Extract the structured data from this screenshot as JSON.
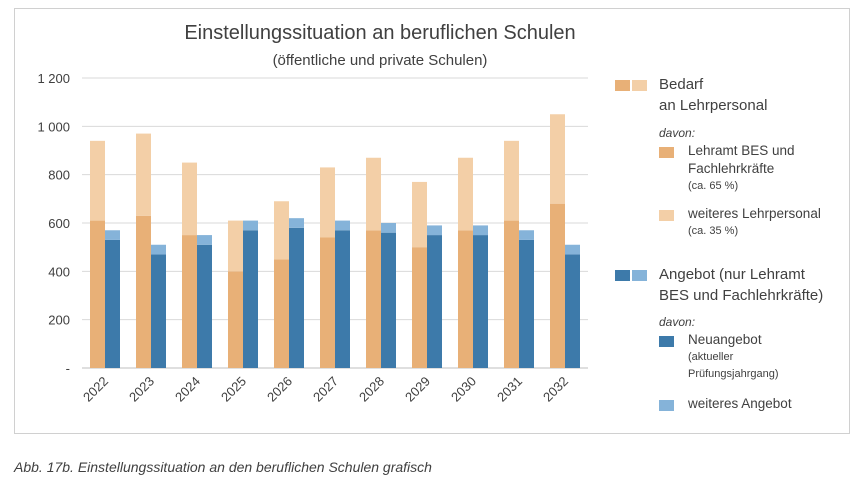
{
  "chart_data": {
    "type": "bar",
    "title": "Einstellungssituation an beruflichen Schulen",
    "subtitle": "(öffentliche und private Schulen)",
    "categories": [
      "2022",
      "2023",
      "2024",
      "2025",
      "2026",
      "2027",
      "2028",
      "2029",
      "2030",
      "2031",
      "2032"
    ],
    "y_ticks": [
      "-",
      "200",
      "400",
      "600",
      "800",
      "1 000",
      "1 200"
    ],
    "ylim": [
      0,
      1200
    ],
    "grid": true,
    "legend_position": "right",
    "series": [
      {
        "name": "Lehramt BES und Fachlehrkräfte (ca. 65 %)",
        "group": "Bedarf",
        "stack_order": 1,
        "color": "#e8b077",
        "values": [
          610,
          630,
          550,
          400,
          450,
          540,
          570,
          500,
          570,
          610,
          680
        ]
      },
      {
        "name": "weiteres Lehrpersonal (ca. 35 %)",
        "group": "Bedarf",
        "stack_order": 2,
        "color": "#f3cfa7",
        "values": [
          330,
          340,
          300,
          210,
          240,
          290,
          300,
          270,
          300,
          330,
          370
        ]
      },
      {
        "name": "Neuangebot (aktueller Prüfungsjahrgang)",
        "group": "Angebot",
        "stack_order": 1,
        "color": "#3d7aaa",
        "values": [
          530,
          470,
          510,
          570,
          580,
          570,
          560,
          550,
          550,
          530,
          470
        ]
      },
      {
        "name": "weiteres Angebot",
        "group": "Angebot",
        "stack_order": 2,
        "color": "#85b3d9",
        "values": [
          40,
          40,
          40,
          40,
          40,
          40,
          40,
          40,
          40,
          40,
          40
        ]
      }
    ]
  },
  "legend": {
    "bedarf_line1": "Bedarf",
    "bedarf_line2": "an Lehrpersonal",
    "davon1": "davon:",
    "lehramt_line1": "Lehramt BES und",
    "lehramt_line2": "Fachlehrkräfte",
    "lehramt_pct": "(ca. 65 %)",
    "weiteres_line1": "weiteres Lehrpersonal",
    "weiteres_pct": "(ca. 35 %)",
    "angebot_line1": "Angebot (nur Lehramt",
    "angebot_line2": "BES und Fachlehrkräfte)",
    "davon2": "davon:",
    "neu_line1": "Neuangebot",
    "neu_line2": "(aktueller",
    "neu_line3": "Prüfungsjahrgang)",
    "weiteres_angebot": "weiteres Angebot"
  },
  "caption": "Abb. 17b. Einstellungssituation an den beruflichen Schulen grafisch"
}
